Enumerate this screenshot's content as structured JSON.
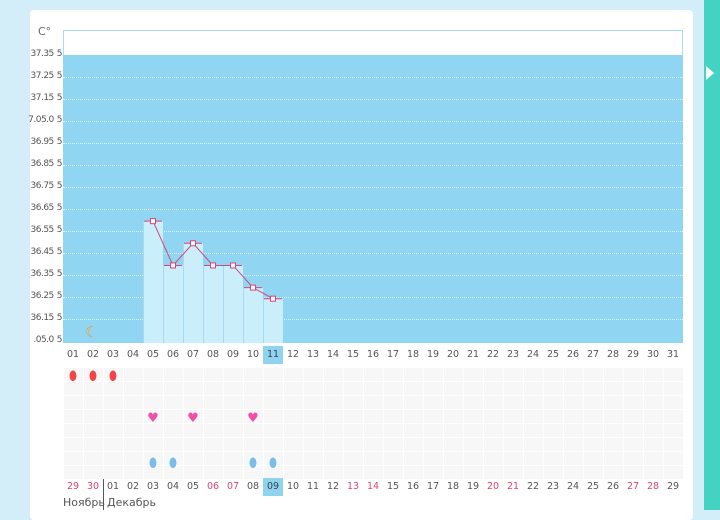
{
  "colors": {
    "plot_bg": "#90d6f2",
    "bar": "#cbeefb",
    "line": "#d9457a",
    "highlight": "#8fd3ef",
    "teal": "#44d3c3"
  },
  "chart_data": {
    "type": "bar",
    "unit_label": "C°",
    "y_ticks": [
      "37.35",
      "37.25",
      "37.15",
      "7.05.0",
      "36.95",
      "36.85",
      "36.75",
      "36.65",
      "36.55",
      "36.45",
      "36.35",
      "36.25",
      "36.15",
      ".05.0"
    ],
    "y_tick_suffix": "5",
    "ylim": [
      36.05,
      37.35
    ],
    "categories": [
      "01",
      "02",
      "03",
      "04",
      "05",
      "06",
      "07",
      "08",
      "09",
      "10",
      "11",
      "12",
      "13",
      "14",
      "15",
      "16",
      "17",
      "18",
      "19",
      "20",
      "21",
      "22",
      "23",
      "24",
      "25",
      "26",
      "27",
      "28",
      "29",
      "30",
      "31"
    ],
    "values": [
      null,
      null,
      null,
      null,
      36.6,
      36.4,
      36.5,
      36.4,
      36.4,
      36.3,
      36.25,
      null,
      null,
      null,
      null,
      null,
      null,
      null,
      null,
      null,
      null,
      null,
      null,
      null,
      null,
      null,
      null,
      null,
      null,
      null,
      null
    ],
    "highlight_index": 10
  },
  "markers": {
    "moon_day_index": 1,
    "drops": [
      0,
      1,
      2
    ],
    "hearts": [
      4,
      6,
      9
    ],
    "eggs": [
      4,
      5,
      9,
      10
    ]
  },
  "cycle_days": {
    "labels": [
      "29",
      "30",
      "01",
      "02",
      "03",
      "04",
      "05",
      "06",
      "07",
      "08",
      "09",
      "10",
      "11",
      "12",
      "13",
      "14",
      "15",
      "16",
      "17",
      "18",
      "19",
      "20",
      "21",
      "22",
      "23",
      "24",
      "25",
      "26",
      "27",
      "28",
      "29"
    ],
    "red": [
      0,
      1,
      7,
      8,
      14,
      15,
      21,
      22,
      28,
      29
    ],
    "highlight_index": 10
  },
  "months": {
    "prev": "Ноябрь",
    "current": "Декабрь"
  }
}
